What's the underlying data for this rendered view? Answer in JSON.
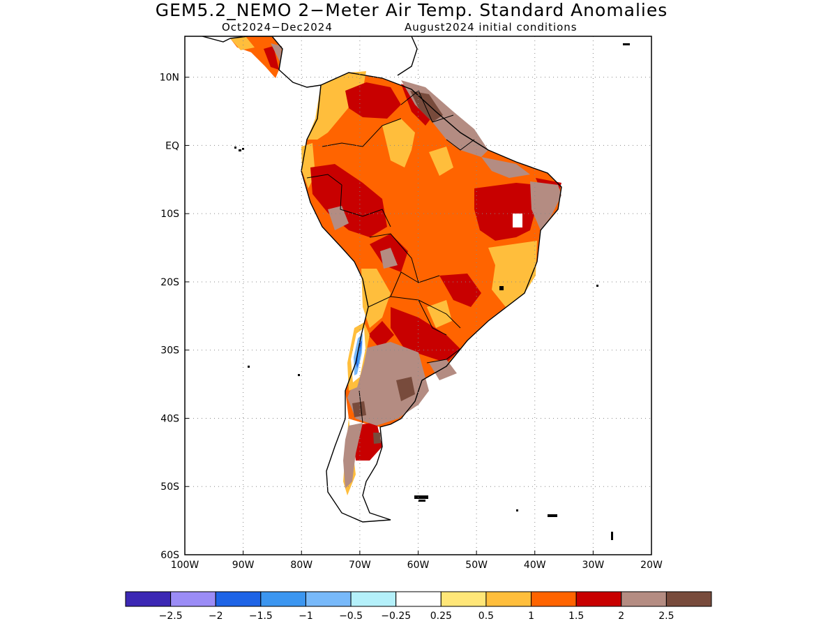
{
  "title": "GEM5.2_NEMO 2−Meter Air Temp. Standard Anomalies",
  "subtitle_left": "Oct2024−Dec2024",
  "subtitle_right": "August2024 initial conditions",
  "map": {
    "lon_range": [
      -100,
      -20
    ],
    "lat_range": [
      -60,
      16
    ],
    "lon_ticks": [
      "100W",
      "90W",
      "80W",
      "70W",
      "60W",
      "50W",
      "40W",
      "30W",
      "20W"
    ],
    "lat_ticks": [
      "10N",
      "EQ",
      "10S",
      "20S",
      "30S",
      "40S",
      "50S",
      "60S"
    ],
    "gridlines": "dotted"
  },
  "colorbar": {
    "colors": [
      "#3c28b4",
      "#9b8cf6",
      "#1e64e6",
      "#3c96f0",
      "#78b9fa",
      "#b4f0fa",
      "#ffffff",
      "#ffe678",
      "#ffbe3c",
      "#ff6400",
      "#c80000",
      "#b48c82",
      "#784b3c"
    ],
    "labels": [
      "−2.5",
      "−2",
      "−1.5",
      "−1",
      "−0.5",
      "−0.25",
      "0.25",
      "0.5",
      "1",
      "1.5",
      "2",
      "2.5"
    ]
  }
}
